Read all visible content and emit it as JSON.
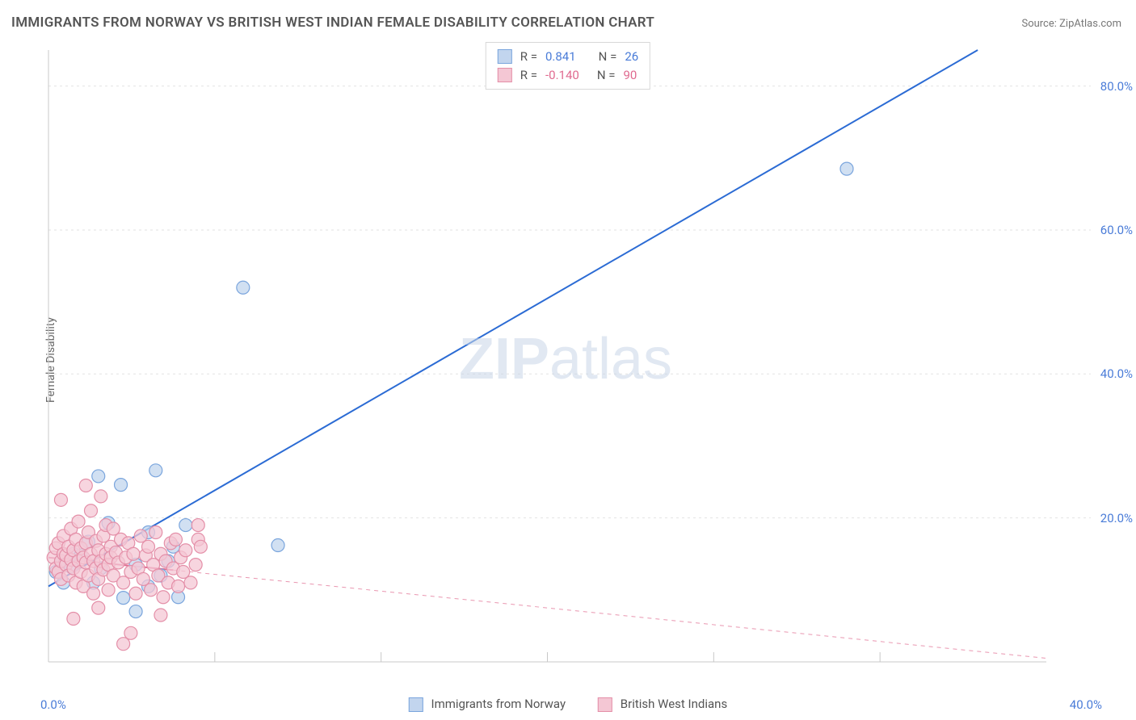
{
  "title": "IMMIGRANTS FROM NORWAY VS BRITISH WEST INDIAN FEMALE DISABILITY CORRELATION CHART",
  "source_prefix": "Source: ",
  "source_name": "ZipAtlas.com",
  "ylabel": "Female Disability",
  "watermark": "ZIPatlas",
  "chart": {
    "type": "scatter-with-trend",
    "xlim": [
      0,
      40
    ],
    "ylim": [
      0,
      85
    ],
    "x_ticks": [
      0,
      40
    ],
    "x_tick_labels": [
      "0.0%",
      "40.0%"
    ],
    "y_ticks": [
      20,
      40,
      60,
      80
    ],
    "y_tick_labels": [
      "20.0%",
      "40.0%",
      "60.0%",
      "80.0%"
    ],
    "grid_color": "#e2e2e2",
    "axis_color": "#c8c8c8",
    "background_color": "#ffffff",
    "series": [
      {
        "name": "Immigrants from Norway",
        "color_fill": "#c2d5ee",
        "color_stroke": "#7aa5dd",
        "marker_radius": 8,
        "trend": {
          "slope": 2.0,
          "intercept": 10.5,
          "color": "#2b6bd4",
          "width": 2,
          "dash_after_cluster": false
        },
        "legend_r_label": "R =",
        "legend_r_value": "0.841",
        "legend_n_label": "N =",
        "legend_n_value": "26",
        "points": [
          [
            0.3,
            12.5
          ],
          [
            0.5,
            14.0
          ],
          [
            0.6,
            11.0
          ],
          [
            0.9,
            13.2
          ],
          [
            1.0,
            15.0
          ],
          [
            1.3,
            14.8
          ],
          [
            1.6,
            16.7
          ],
          [
            1.8,
            11.0
          ],
          [
            2.0,
            25.8
          ],
          [
            2.1,
            13.0
          ],
          [
            2.4,
            19.3
          ],
          [
            2.9,
            24.6
          ],
          [
            3.0,
            8.9
          ],
          [
            3.5,
            13.5
          ],
          [
            3.5,
            7.0
          ],
          [
            4.0,
            18.0
          ],
          [
            4.0,
            10.5
          ],
          [
            4.3,
            26.6
          ],
          [
            4.5,
            12.0
          ],
          [
            4.8,
            14.0
          ],
          [
            5.0,
            16.0
          ],
          [
            5.2,
            9.0
          ],
          [
            5.5,
            19.0
          ],
          [
            7.8,
            52.0
          ],
          [
            9.2,
            16.2
          ],
          [
            32.0,
            68.5
          ]
        ]
      },
      {
        "name": "British West Indians",
        "color_fill": "#f4c7d4",
        "color_stroke": "#e48fa8",
        "marker_radius": 8,
        "trend": {
          "slope": -0.35,
          "intercept": 14.5,
          "color": "#e06a8f",
          "width": 2,
          "dash_after_cluster": true,
          "solid_until_x": 5
        },
        "legend_r_label": "R =",
        "legend_r_value": "-0.140",
        "legend_n_label": "N =",
        "legend_n_value": "90",
        "points": [
          [
            0.2,
            14.5
          ],
          [
            0.3,
            13.0
          ],
          [
            0.3,
            15.8
          ],
          [
            0.4,
            12.5
          ],
          [
            0.4,
            16.5
          ],
          [
            0.5,
            14.0
          ],
          [
            0.5,
            11.5
          ],
          [
            0.6,
            15.0
          ],
          [
            0.6,
            17.5
          ],
          [
            0.7,
            13.5
          ],
          [
            0.7,
            14.8
          ],
          [
            0.8,
            12.0
          ],
          [
            0.8,
            16.0
          ],
          [
            0.9,
            14.2
          ],
          [
            0.9,
            18.5
          ],
          [
            1.0,
            13.0
          ],
          [
            1.0,
            15.5
          ],
          [
            1.1,
            11.0
          ],
          [
            1.1,
            17.0
          ],
          [
            1.2,
            14.0
          ],
          [
            1.2,
            19.5
          ],
          [
            1.3,
            12.5
          ],
          [
            1.3,
            15.8
          ],
          [
            1.4,
            14.5
          ],
          [
            1.4,
            10.5
          ],
          [
            1.5,
            16.5
          ],
          [
            1.5,
            13.8
          ],
          [
            1.6,
            18.0
          ],
          [
            1.6,
            12.0
          ],
          [
            1.7,
            15.0
          ],
          [
            1.7,
            21.0
          ],
          [
            1.8,
            14.0
          ],
          [
            1.8,
            9.5
          ],
          [
            1.9,
            16.8
          ],
          [
            1.9,
            13.0
          ],
          [
            2.0,
            15.5
          ],
          [
            2.0,
            11.5
          ],
          [
            2.1,
            23.0
          ],
          [
            2.1,
            14.0
          ],
          [
            2.2,
            17.5
          ],
          [
            2.2,
            12.8
          ],
          [
            2.3,
            15.0
          ],
          [
            2.3,
            19.0
          ],
          [
            2.4,
            13.5
          ],
          [
            2.4,
            10.0
          ],
          [
            2.5,
            16.0
          ],
          [
            2.5,
            14.5
          ],
          [
            2.6,
            18.5
          ],
          [
            2.6,
            12.0
          ],
          [
            2.7,
            15.2
          ],
          [
            2.8,
            13.8
          ],
          [
            2.9,
            17.0
          ],
          [
            3.0,
            11.0
          ],
          [
            3.1,
            14.5
          ],
          [
            3.2,
            16.5
          ],
          [
            3.3,
            12.5
          ],
          [
            3.3,
            4.0
          ],
          [
            3.4,
            15.0
          ],
          [
            3.5,
            9.5
          ],
          [
            3.6,
            13.0
          ],
          [
            3.7,
            17.5
          ],
          [
            3.8,
            11.5
          ],
          [
            3.9,
            14.8
          ],
          [
            4.0,
            16.0
          ],
          [
            4.1,
            10.0
          ],
          [
            4.2,
            13.5
          ],
          [
            4.3,
            18.0
          ],
          [
            4.4,
            12.0
          ],
          [
            4.5,
            15.0
          ],
          [
            4.6,
            9.0
          ],
          [
            4.7,
            14.0
          ],
          [
            4.8,
            11.0
          ],
          [
            4.9,
            16.5
          ],
          [
            5.0,
            13.0
          ],
          [
            5.1,
            17.0
          ],
          [
            5.2,
            10.5
          ],
          [
            5.3,
            14.5
          ],
          [
            5.4,
            12.5
          ],
          [
            5.5,
            15.5
          ],
          [
            5.7,
            11.0
          ],
          [
            5.9,
            13.5
          ],
          [
            6.0,
            17.0
          ],
          [
            6.1,
            16.0
          ],
          [
            6.0,
            19.0
          ],
          [
            1.5,
            24.5
          ],
          [
            0.5,
            22.5
          ],
          [
            1.0,
            6.0
          ],
          [
            2.0,
            7.5
          ],
          [
            3.0,
            2.5
          ],
          [
            4.5,
            6.5
          ]
        ]
      }
    ]
  }
}
